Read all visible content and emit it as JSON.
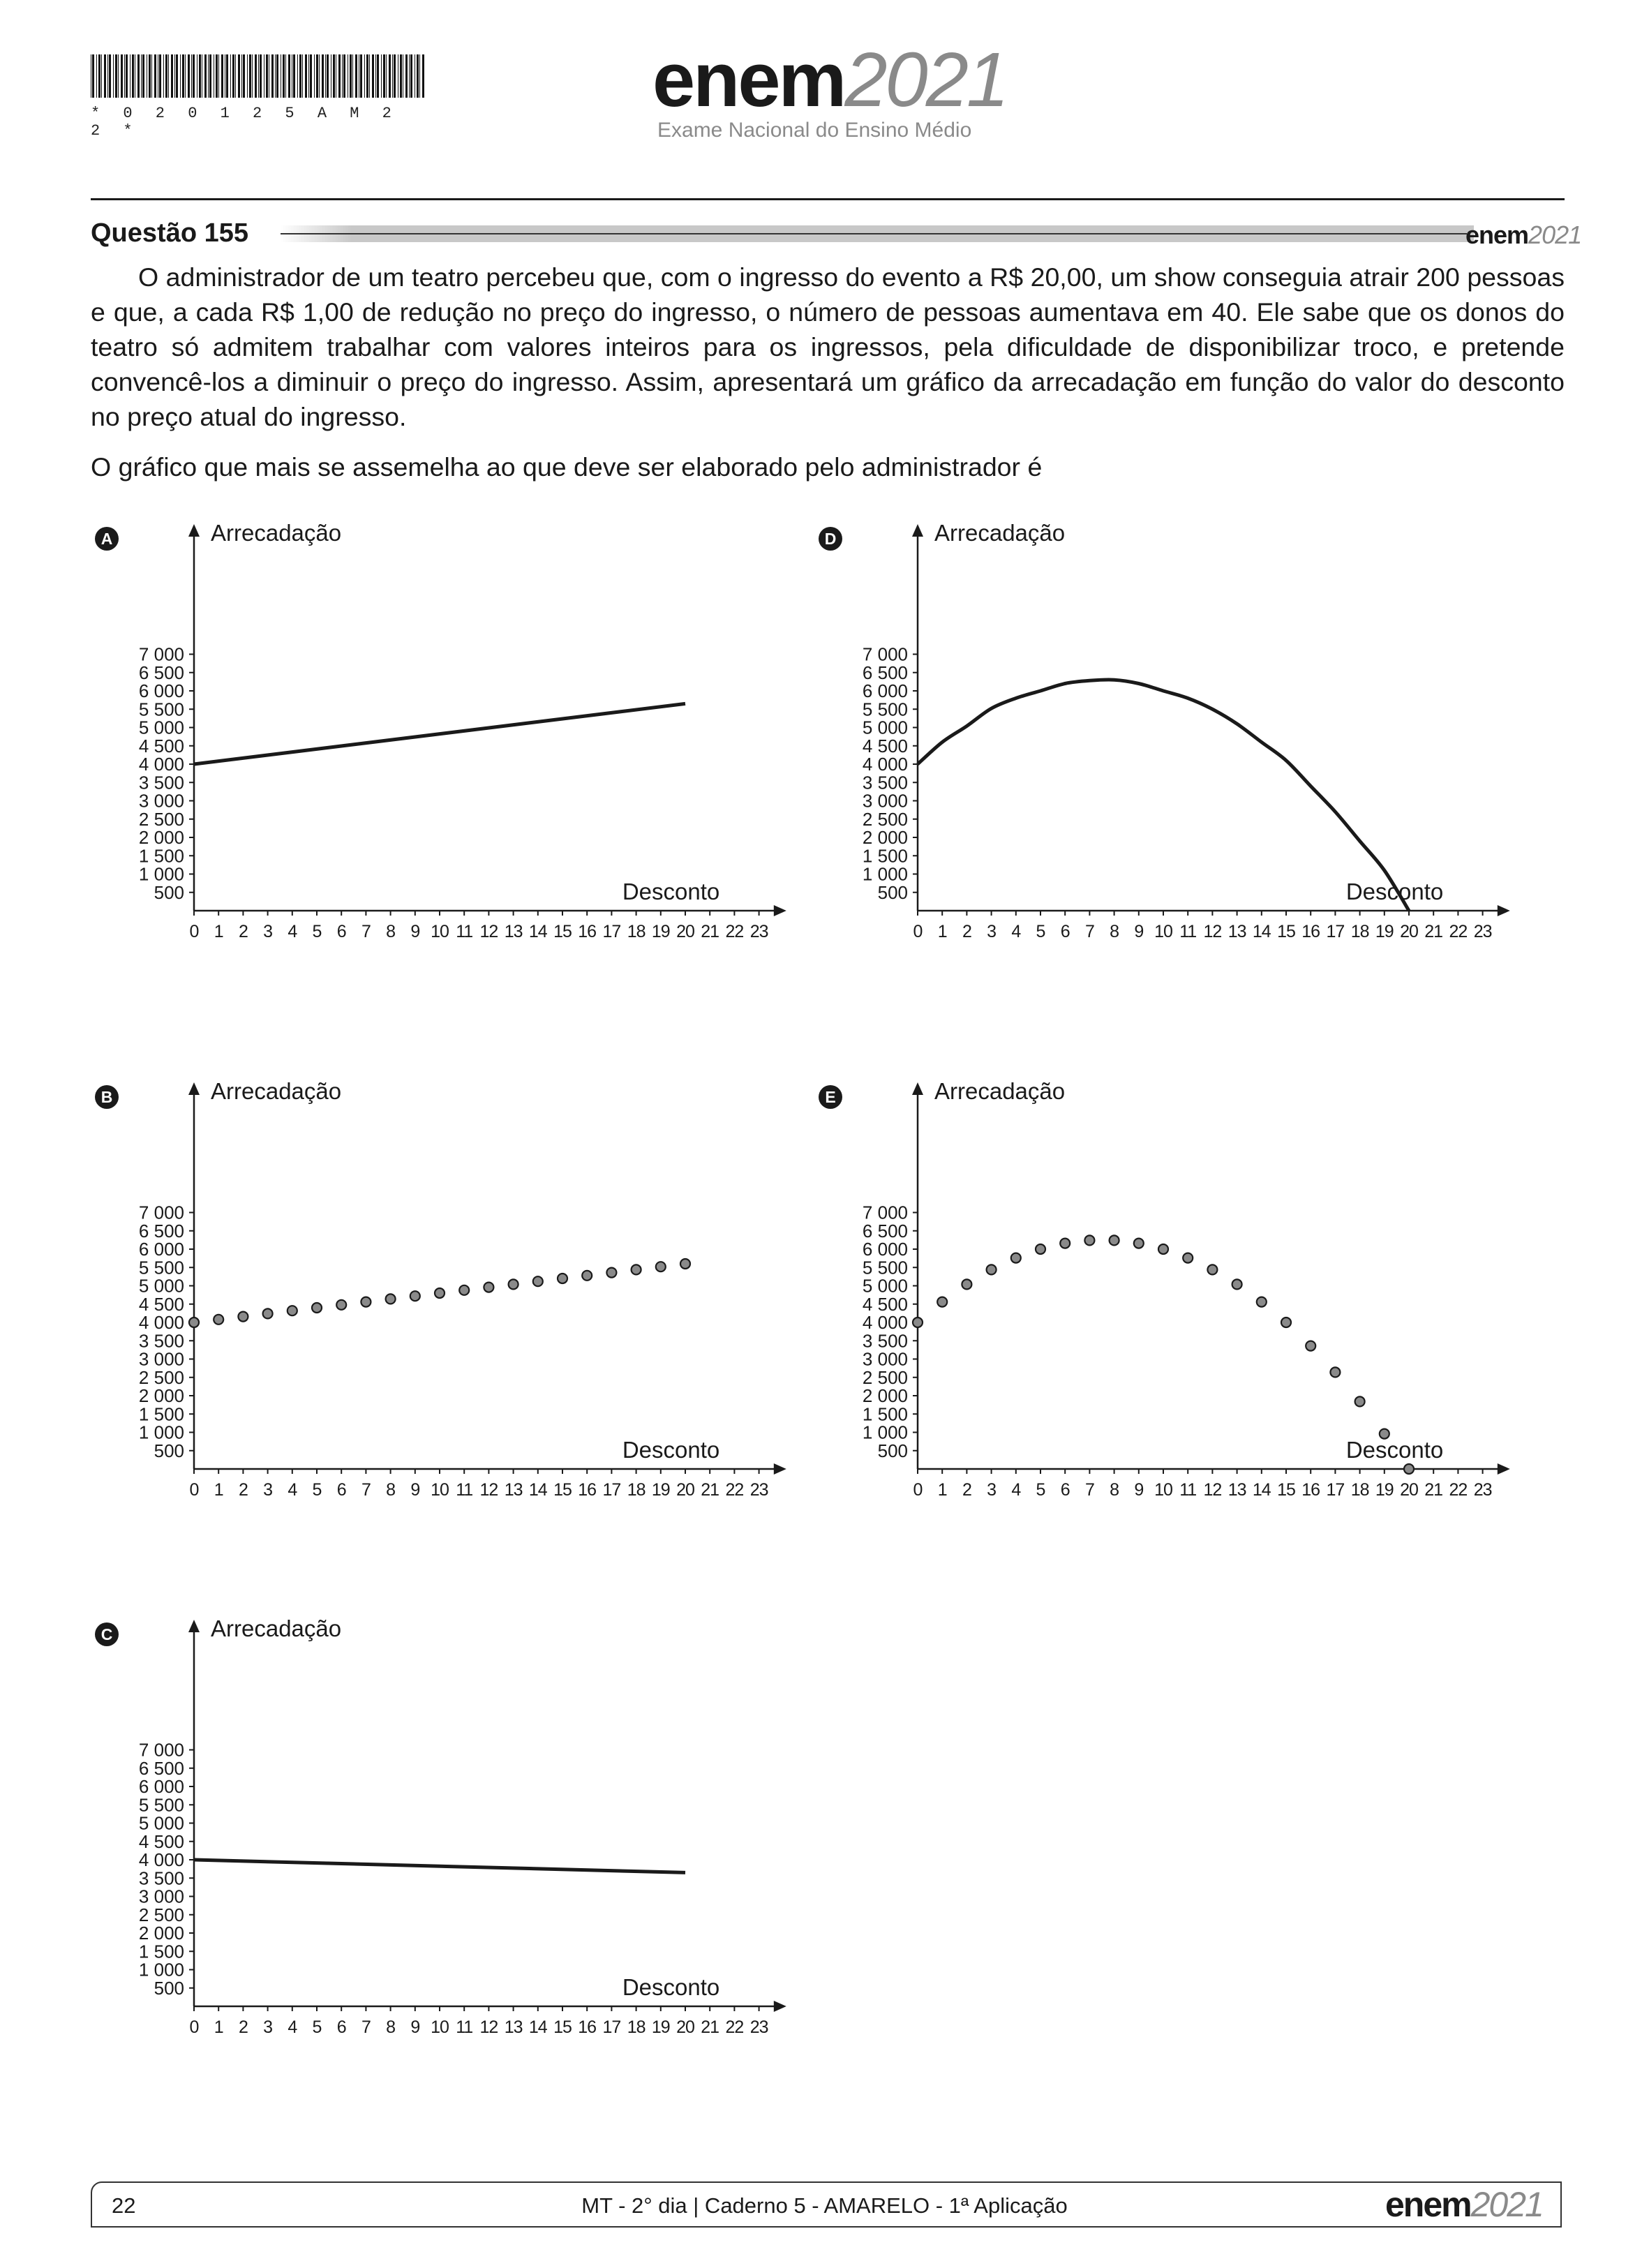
{
  "header": {
    "barcode_text": "* 0 2 0 1 2 5 A M 2 2 *",
    "logo_word": "enem",
    "logo_year": "2021",
    "subtitle": "Exame Nacional do Ensino Médio"
  },
  "question": {
    "title": "Questão 155",
    "badge_word": "enem",
    "badge_year": "2021",
    "stem": "O administrador de um teatro percebeu que, com o ingresso do evento a R$ 20,00, um show conseguia atrair 200 pessoas e que, a cada  R$ 1,00 de redução no preço do ingresso, o número de pessoas aumentava em 40. Ele sabe que os donos do teatro só admitem trabalhar com valores inteiros para os ingressos, pela dificuldade de disponibilizar troco, e pretende convencê-los a diminuir o preço do ingresso. Assim, apresentará um gráfico da arrecadação em função do valor do desconto no preço atual do ingresso.",
    "prompt": "O gráfico que mais se assemelha ao que deve ser elaborado pelo administrador é"
  },
  "chart_data": [
    {
      "option": "A",
      "type": "line",
      "ylabel": "Arrecadação",
      "xlabel": "Desconto",
      "xlim": [
        0,
        23
      ],
      "ylim": [
        0,
        7000
      ],
      "x": [
        0,
        20
      ],
      "y": [
        4000,
        5650
      ]
    },
    {
      "option": "B",
      "type": "scatter",
      "ylabel": "Arrecadação",
      "xlabel": "Desconto",
      "xlim": [
        0,
        23
      ],
      "ylim": [
        0,
        7000
      ],
      "x": [
        0,
        1,
        2,
        3,
        4,
        5,
        6,
        7,
        8,
        9,
        10,
        11,
        12,
        13,
        14,
        15,
        16,
        17,
        18,
        19,
        20
      ],
      "y": [
        4000,
        4080,
        4160,
        4240,
        4320,
        4400,
        4480,
        4560,
        4640,
        4720,
        4800,
        4880,
        4960,
        5040,
        5120,
        5200,
        5280,
        5360,
        5440,
        5520,
        5600
      ]
    },
    {
      "option": "C",
      "type": "line",
      "ylabel": "Arrecadação",
      "xlabel": "Desconto",
      "xlim": [
        0,
        23
      ],
      "ylim": [
        0,
        7000
      ],
      "x": [
        0,
        20
      ],
      "y": [
        4000,
        3650
      ]
    },
    {
      "option": "D",
      "type": "line",
      "ylabel": "Arrecadação",
      "xlabel": "Desconto",
      "xlim": [
        0,
        23
      ],
      "ylim": [
        0,
        7000
      ],
      "x": [
        0,
        1,
        2,
        3,
        4,
        5,
        6,
        7,
        8,
        9,
        10,
        11,
        12,
        13,
        14,
        15,
        16,
        17,
        18,
        19,
        20
      ],
      "y": [
        4000,
        4600,
        5040,
        5520,
        5800,
        6000,
        6200,
        6280,
        6300,
        6200,
        6000,
        5800,
        5500,
        5100,
        4600,
        4100,
        3400,
        2700,
        1900,
        1100,
        0
      ]
    },
    {
      "option": "E",
      "type": "scatter",
      "ylabel": "Arrecadação",
      "xlabel": "Desconto",
      "xlim": [
        0,
        23
      ],
      "ylim": [
        0,
        7000
      ],
      "x": [
        0,
        1,
        2,
        3,
        4,
        5,
        6,
        7,
        8,
        9,
        10,
        11,
        12,
        13,
        14,
        15,
        16,
        17,
        18,
        19,
        20
      ],
      "y": [
        4000,
        4560,
        5040,
        5440,
        5760,
        6000,
        6160,
        6240,
        6240,
        6160,
        6000,
        5760,
        5440,
        5040,
        4560,
        4000,
        3360,
        2640,
        1840,
        960,
        0
      ]
    }
  ],
  "axis": {
    "yticks": [
      "500",
      "1 000",
      "1 500",
      "2 000",
      "2 500",
      "3 000",
      "3 500",
      "4 000",
      "4 500",
      "5 000",
      "5 500",
      "6 000",
      "6 500",
      "7 000"
    ],
    "xticks": [
      "0",
      "1",
      "2",
      "3",
      "4",
      "5",
      "6",
      "7",
      "8",
      "9",
      "10",
      "11",
      "12",
      "13",
      "14",
      "15",
      "16",
      "17",
      "18",
      "19",
      "20",
      "21",
      "22",
      "23"
    ]
  },
  "footer": {
    "page": "22",
    "text": "MT - 2° dia | Caderno 5 - AMARELO - 1ª Aplicação",
    "logo_word": "enem",
    "logo_year": "2021"
  }
}
